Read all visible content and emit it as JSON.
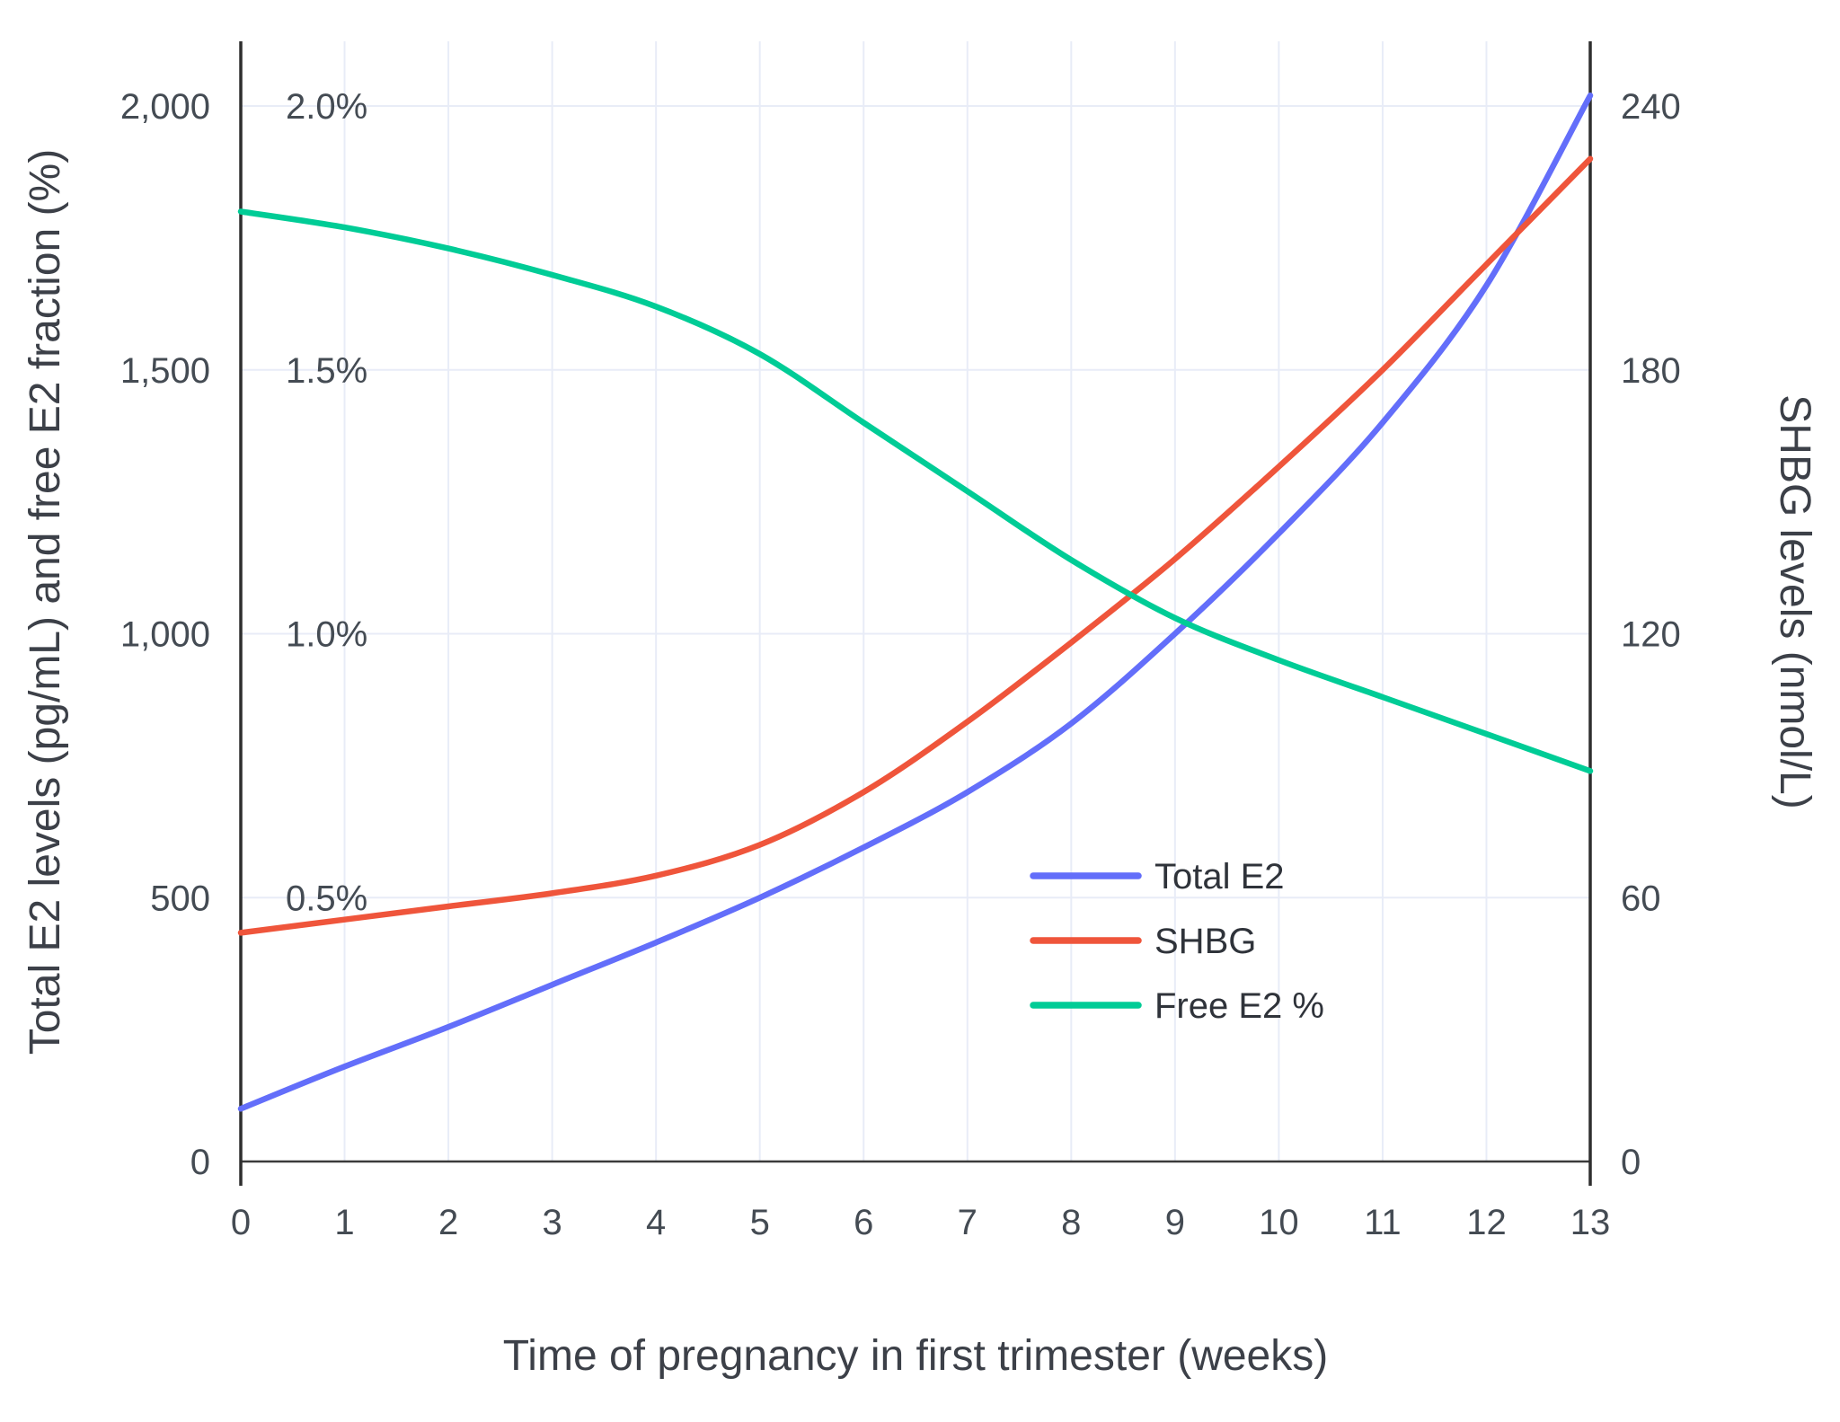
{
  "page": {
    "background": "#ffffff"
  },
  "chart_data": {
    "type": "line",
    "title": "",
    "xlabel": "Time of pregnancy in first trimester (weeks)",
    "ylabel_left": "Total E2 levels (pg/mL) and free E2 fraction (%)",
    "ylabel_right": "SHBG levels (nmol/L)",
    "x": [
      0,
      1,
      2,
      3,
      4,
      5,
      6,
      7,
      8,
      9,
      10,
      11,
      12,
      13
    ],
    "x_tick_labels": [
      "0",
      "1",
      "2",
      "3",
      "4",
      "5",
      "6",
      "7",
      "8",
      "9",
      "10",
      "11",
      "12",
      "13"
    ],
    "left_axis": {
      "range": [
        0,
        2000
      ],
      "tick_values": [
        0,
        500,
        1000,
        1500,
        2000
      ],
      "tick_labels": [
        "0",
        "500",
        "1,000",
        "1,500",
        "2,000"
      ]
    },
    "pct_axis": {
      "range_pct": [
        0,
        2.0
      ],
      "tick_values": [
        500,
        1000,
        1500,
        2000
      ],
      "tick_labels": [
        "0.5%",
        "1.0%",
        "1.5%",
        "2.0%"
      ]
    },
    "right_axis": {
      "range": [
        0,
        240
      ],
      "tick_values": [
        0,
        60,
        120,
        180,
        240
      ],
      "tick_labels": [
        "0",
        "60",
        "120",
        "180",
        "240"
      ]
    },
    "grid": true,
    "legend_position": "inside-right",
    "series": [
      {
        "name": "Total E2",
        "axis": "left",
        "unit": "pg/mL",
        "color": "#636efa",
        "values": [
          100,
          180,
          255,
          335,
          415,
          500,
          595,
          700,
          830,
          1000,
          1190,
          1400,
          1660,
          2020
        ]
      },
      {
        "name": "SHBG",
        "axis": "right",
        "unit": "nmol/L",
        "color": "#ef553b",
        "values": [
          52,
          55,
          58,
          61,
          65,
          72,
          84,
          100,
          118,
          137,
          158,
          180,
          204,
          228
        ]
      },
      {
        "name": "Free E2 %",
        "axis": "pct",
        "unit": "%",
        "color": "#00cc96",
        "values": [
          1.8,
          1.77,
          1.73,
          1.68,
          1.62,
          1.53,
          1.4,
          1.27,
          1.14,
          1.03,
          0.95,
          0.88,
          0.81,
          0.74
        ]
      }
    ],
    "colors": {
      "grid": "#e8ecf7",
      "axis_line": "#2f2f2f",
      "zero_line": "#3a3a3a",
      "tick_text": "#444b53"
    }
  }
}
